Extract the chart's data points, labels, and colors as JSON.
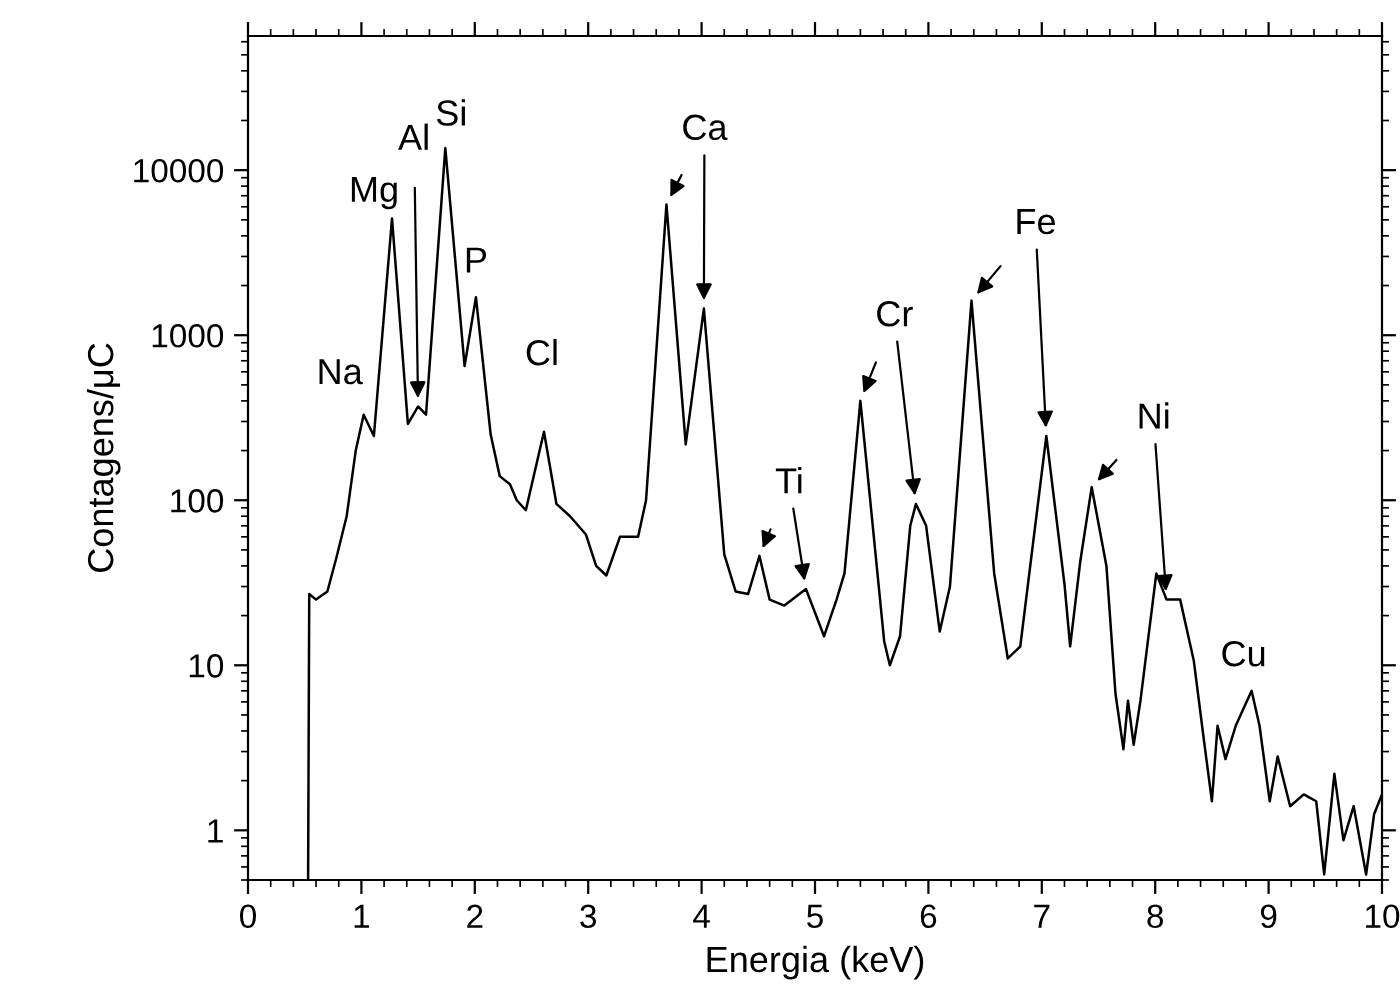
{
  "chart_data": {
    "type": "line",
    "xlabel": "Energia (keV)",
    "ylabel": "Contagens/μC",
    "log": "y",
    "color": "#000000",
    "xlim": [
      0,
      10
    ],
    "ylim": [
      0.5,
      65000
    ],
    "xticks": [
      0,
      1,
      2,
      3,
      4,
      5,
      6,
      7,
      8,
      9,
      10
    ],
    "yticks": [
      1,
      10,
      100,
      1000,
      10000
    ],
    "x": [
      0.53,
      0.54,
      0.6,
      0.7,
      0.78,
      0.87,
      0.95,
      1.02,
      1.11,
      1.27,
      1.41,
      1.5,
      1.57,
      1.74,
      1.91,
      2.01,
      2.14,
      2.22,
      2.31,
      2.37,
      2.45,
      2.61,
      2.72,
      2.84,
      2.98,
      3.07,
      3.16,
      3.28,
      3.44,
      3.51,
      3.69,
      3.86,
      4.02,
      4.2,
      4.3,
      4.41,
      4.51,
      4.6,
      4.73,
      4.92,
      5.08,
      5.19,
      5.26,
      5.4,
      5.61,
      5.66,
      5.75,
      5.84,
      5.89,
      5.98,
      6.1,
      6.19,
      6.38,
      6.58,
      6.7,
      6.81,
      7.04,
      7.2,
      7.25,
      7.34,
      7.44,
      7.57,
      7.65,
      7.72,
      7.76,
      7.81,
      7.87,
      8.01,
      8.1,
      8.22,
      8.34,
      8.43,
      8.5,
      8.55,
      8.62,
      8.71,
      8.85,
      8.92,
      9.01,
      9.08,
      9.19,
      9.31,
      9.42,
      9.49,
      9.58,
      9.66,
      9.75,
      9.86,
      9.93,
      10.0
    ],
    "values": [
      0.5,
      27,
      25,
      28,
      45,
      80,
      200,
      330,
      245,
      5100,
      290,
      370,
      330,
      13600,
      650,
      1700,
      250,
      140,
      125,
      100,
      87,
      260,
      95,
      80,
      62,
      40,
      35,
      60,
      60,
      100,
      6200,
      218,
      1450,
      47,
      28,
      27,
      46,
      25,
      23,
      29,
      15,
      25,
      36,
      400,
      14,
      10,
      15,
      70,
      95,
      70,
      16,
      30,
      1620,
      36,
      11,
      13,
      245,
      31,
      13,
      43,
      120,
      40,
      6.7,
      3.1,
      6.1,
      3.3,
      6.1,
      36,
      25,
      25,
      10.7,
      3.5,
      1.5,
      4.3,
      2.7,
      4.3,
      7,
      4.3,
      1.5,
      2.8,
      1.4,
      1.65,
      1.5,
      0.54,
      2.2,
      0.87,
      1.4,
      0.54,
      1.25,
      1.65
    ],
    "annotations": [
      {
        "text": "Na",
        "x": 1.02,
        "y": 330
      },
      {
        "text": "Mg",
        "x": 1.27,
        "y": 5100
      },
      {
        "text": "Al",
        "x": 1.5,
        "y": 370
      },
      {
        "text": "Si",
        "x": 1.74,
        "y": 13600
      },
      {
        "text": "P",
        "x": 2.01,
        "y": 1700
      },
      {
        "text": "Cl",
        "x": 2.61,
        "y": 260
      },
      {
        "text": "Ca",
        "x": 3.69,
        "y": 6200
      },
      {
        "text": "Ti",
        "x": 4.51,
        "y": 46
      },
      {
        "text": "Cr",
        "x": 5.4,
        "y": 400
      },
      {
        "text": "Fe",
        "x": 6.38,
        "y": 1620
      },
      {
        "text": "Ni",
        "x": 7.44,
        "y": 120
      },
      {
        "text": "Cu",
        "x": 8.85,
        "y": 7
      }
    ]
  }
}
